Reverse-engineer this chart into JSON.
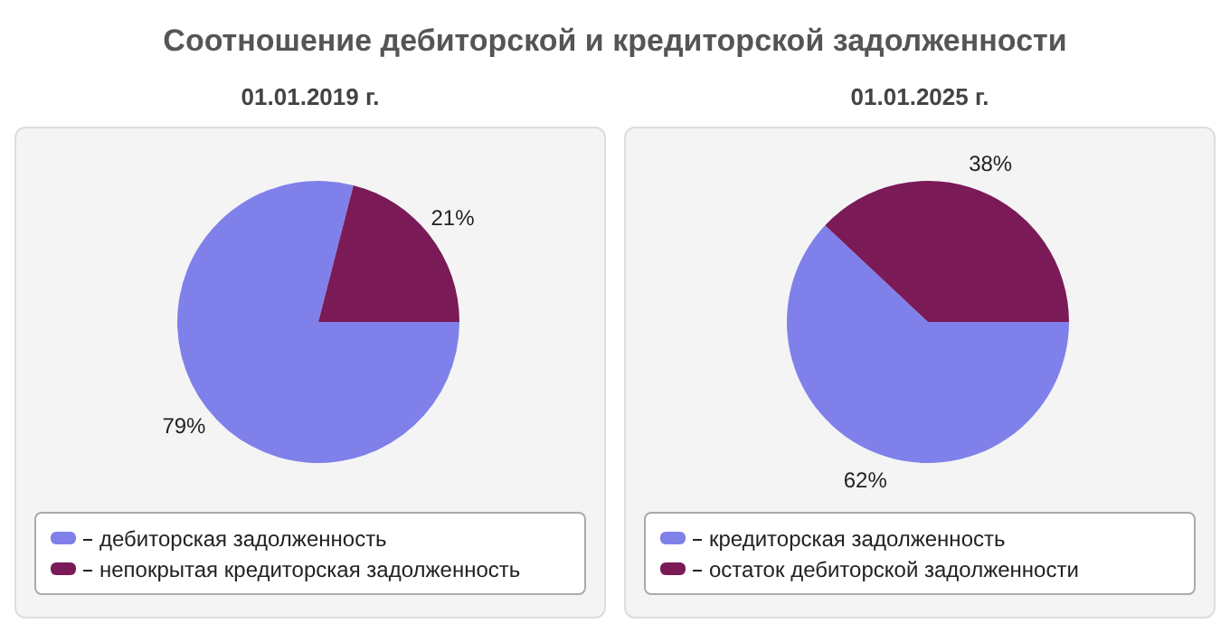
{
  "chart_data": [
    {
      "type": "pie",
      "title": "Соотношение дебиторской и кредиторской задолженности",
      "subtitle": "01.01.2019 г.",
      "categories": [
        "дебиторская задолженность",
        "непокрытая кредиторская задолженность"
      ],
      "values": [
        79,
        21
      ],
      "value_labels": [
        "79%",
        "21%"
      ],
      "colors": [
        "#8080ea",
        "#7a1a57"
      ],
      "legend": "bottom"
    },
    {
      "type": "pie",
      "subtitle": "01.01.2025 г.",
      "categories": [
        "кредиторская задолженность",
        "остаток дебиторской задолженности"
      ],
      "values": [
        62,
        38
      ],
      "value_labels": [
        "62%",
        "38%"
      ],
      "colors": [
        "#8080ea",
        "#7a1a57"
      ],
      "legend": "bottom"
    }
  ]
}
